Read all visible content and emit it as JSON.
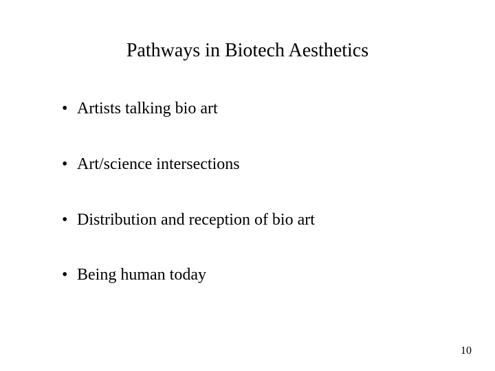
{
  "slide": {
    "title": "Pathways in Biotech Aesthetics",
    "bullets": [
      "Artists talking bio art",
      "Art/science intersections",
      "Distribution and reception of bio art",
      "Being human today"
    ],
    "page_number": "10",
    "bullet_glyph": "•",
    "colors": {
      "background": "#ffffff",
      "text": "#000000"
    },
    "typography": {
      "title_fontsize_pt": 21,
      "body_fontsize_pt": 18,
      "pagenum_fontsize_pt": 12,
      "font_family": "Times New Roman"
    }
  }
}
